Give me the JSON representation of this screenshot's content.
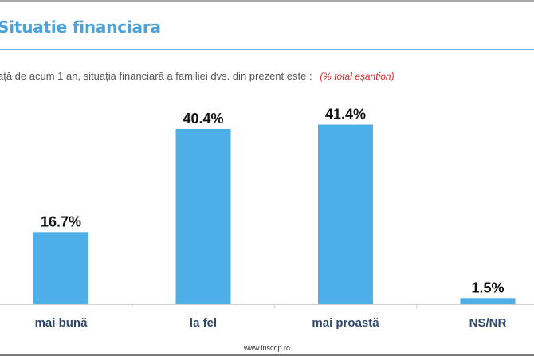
{
  "header": {
    "title": "Situatie financiara",
    "question": "ață de acum 1 an, situația financiară a familiei dvs. din prezent este :",
    "note": "(% total eșantion)"
  },
  "footer": {
    "source": "www.inscop.ro"
  },
  "colors": {
    "bar": "#4daee8",
    "title": "#4aa3dc",
    "category_label": "#2e4a6b",
    "value_label": "#111111",
    "note": "#d0322b"
  },
  "chart_data": {
    "type": "bar",
    "title": "Situatie financiara",
    "xlabel": "",
    "ylabel": "",
    "categories": [
      "mai bună",
      "la fel",
      "mai proastă",
      "NS/NR"
    ],
    "values": [
      16.7,
      40.4,
      41.4,
      1.5
    ],
    "value_labels": [
      "16.7%",
      "40.4%",
      "41.4%",
      "1.5%"
    ],
    "unit": "%",
    "ylim": [
      0,
      45
    ],
    "grid": false,
    "legend": "none"
  }
}
